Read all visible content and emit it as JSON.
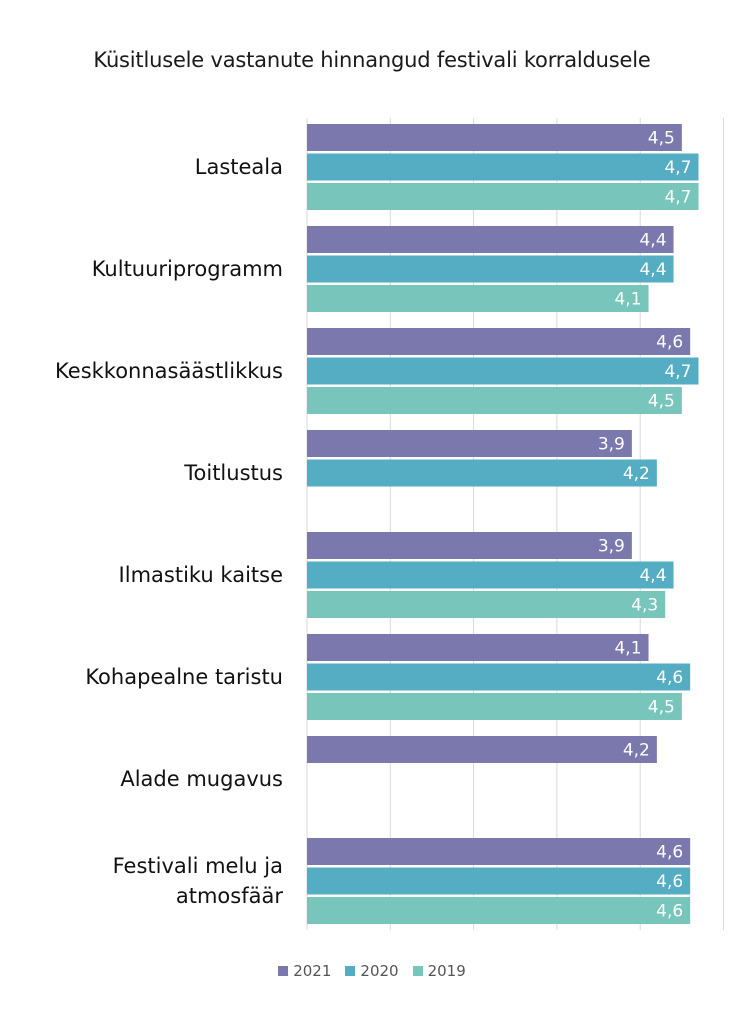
{
  "chart_data": {
    "type": "bar",
    "orientation": "horizontal",
    "title": "Küsitlusele vastanute hinnangud festivali korraldusele",
    "categories": [
      "Lasteala",
      "Kultuuriprogramm",
      "Keskkonnasäästlikkus",
      "Toitlustus",
      "Ilmastiku kaitse",
      "Kohapealne taristu",
      "Alade mugavus",
      "Festivali melu ja atmosfäär"
    ],
    "series": [
      {
        "name": "2021",
        "color": "#7b78ae",
        "values": [
          4.5,
          4.4,
          4.6,
          3.9,
          3.9,
          4.1,
          4.2,
          4.6
        ],
        "labels": [
          "4,5",
          "4,4",
          "4,6",
          "3,9",
          "3,9",
          "4,1",
          "4,2",
          "4,6"
        ]
      },
      {
        "name": "2020",
        "color": "#55adc4",
        "values": [
          4.7,
          4.4,
          4.7,
          4.2,
          4.4,
          4.6,
          null,
          4.6
        ],
        "labels": [
          "4,7",
          "4,4",
          "4,7",
          "4,2",
          "4,4",
          "4,6",
          "",
          "4,6"
        ]
      },
      {
        "name": "2019",
        "color": "#78c6bb",
        "values": [
          4.7,
          4.1,
          4.5,
          null,
          4.3,
          4.5,
          null,
          4.6
        ],
        "labels": [
          "4,7",
          "4,1",
          "4,5",
          "",
          "4,3",
          "4,5",
          "",
          "4,6"
        ]
      }
    ],
    "xlim": [
      0,
      5
    ],
    "grid": true,
    "legend_position": "bottom"
  }
}
